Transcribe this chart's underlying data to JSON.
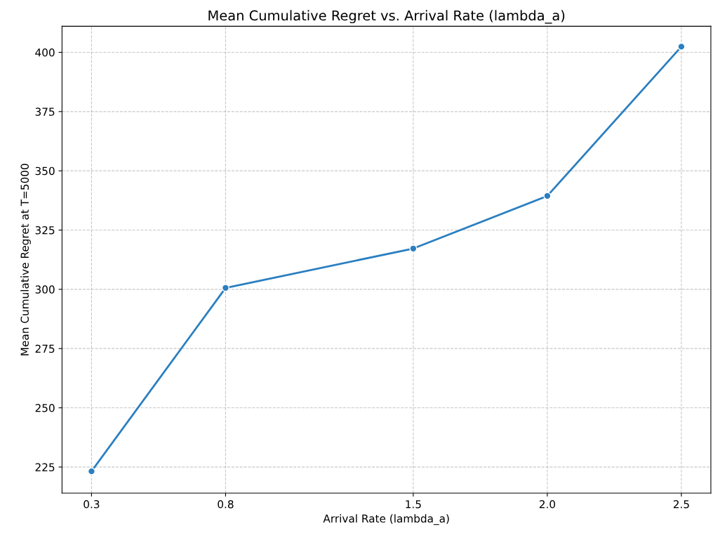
{
  "chart_data": {
    "type": "line",
    "title": "Mean Cumulative Regret vs. Arrival Rate (lambda_a)",
    "xlabel": "Arrival Rate (lambda_a)",
    "ylabel": "Mean Cumulative Regret at T=5000",
    "x": [
      0.3,
      0.8,
      1.5,
      2.0,
      2.5
    ],
    "series": [
      {
        "color": "#2b7fc0",
        "values": [
          223.2,
          300.6,
          317.2,
          339.4,
          402.4
        ]
      }
    ],
    "xlim": [
      0.19,
      2.61
    ],
    "xticks": [
      0.3,
      0.8,
      1.5,
      {
        "value": 2.0,
        "label": "2.0"
      },
      2.5
    ],
    "ylim": [
      214,
      411
    ],
    "yticks": [
      225,
      250,
      275,
      300,
      325,
      350,
      375,
      400
    ],
    "grid": true,
    "marker": "circle",
    "line_style": "solid"
  }
}
